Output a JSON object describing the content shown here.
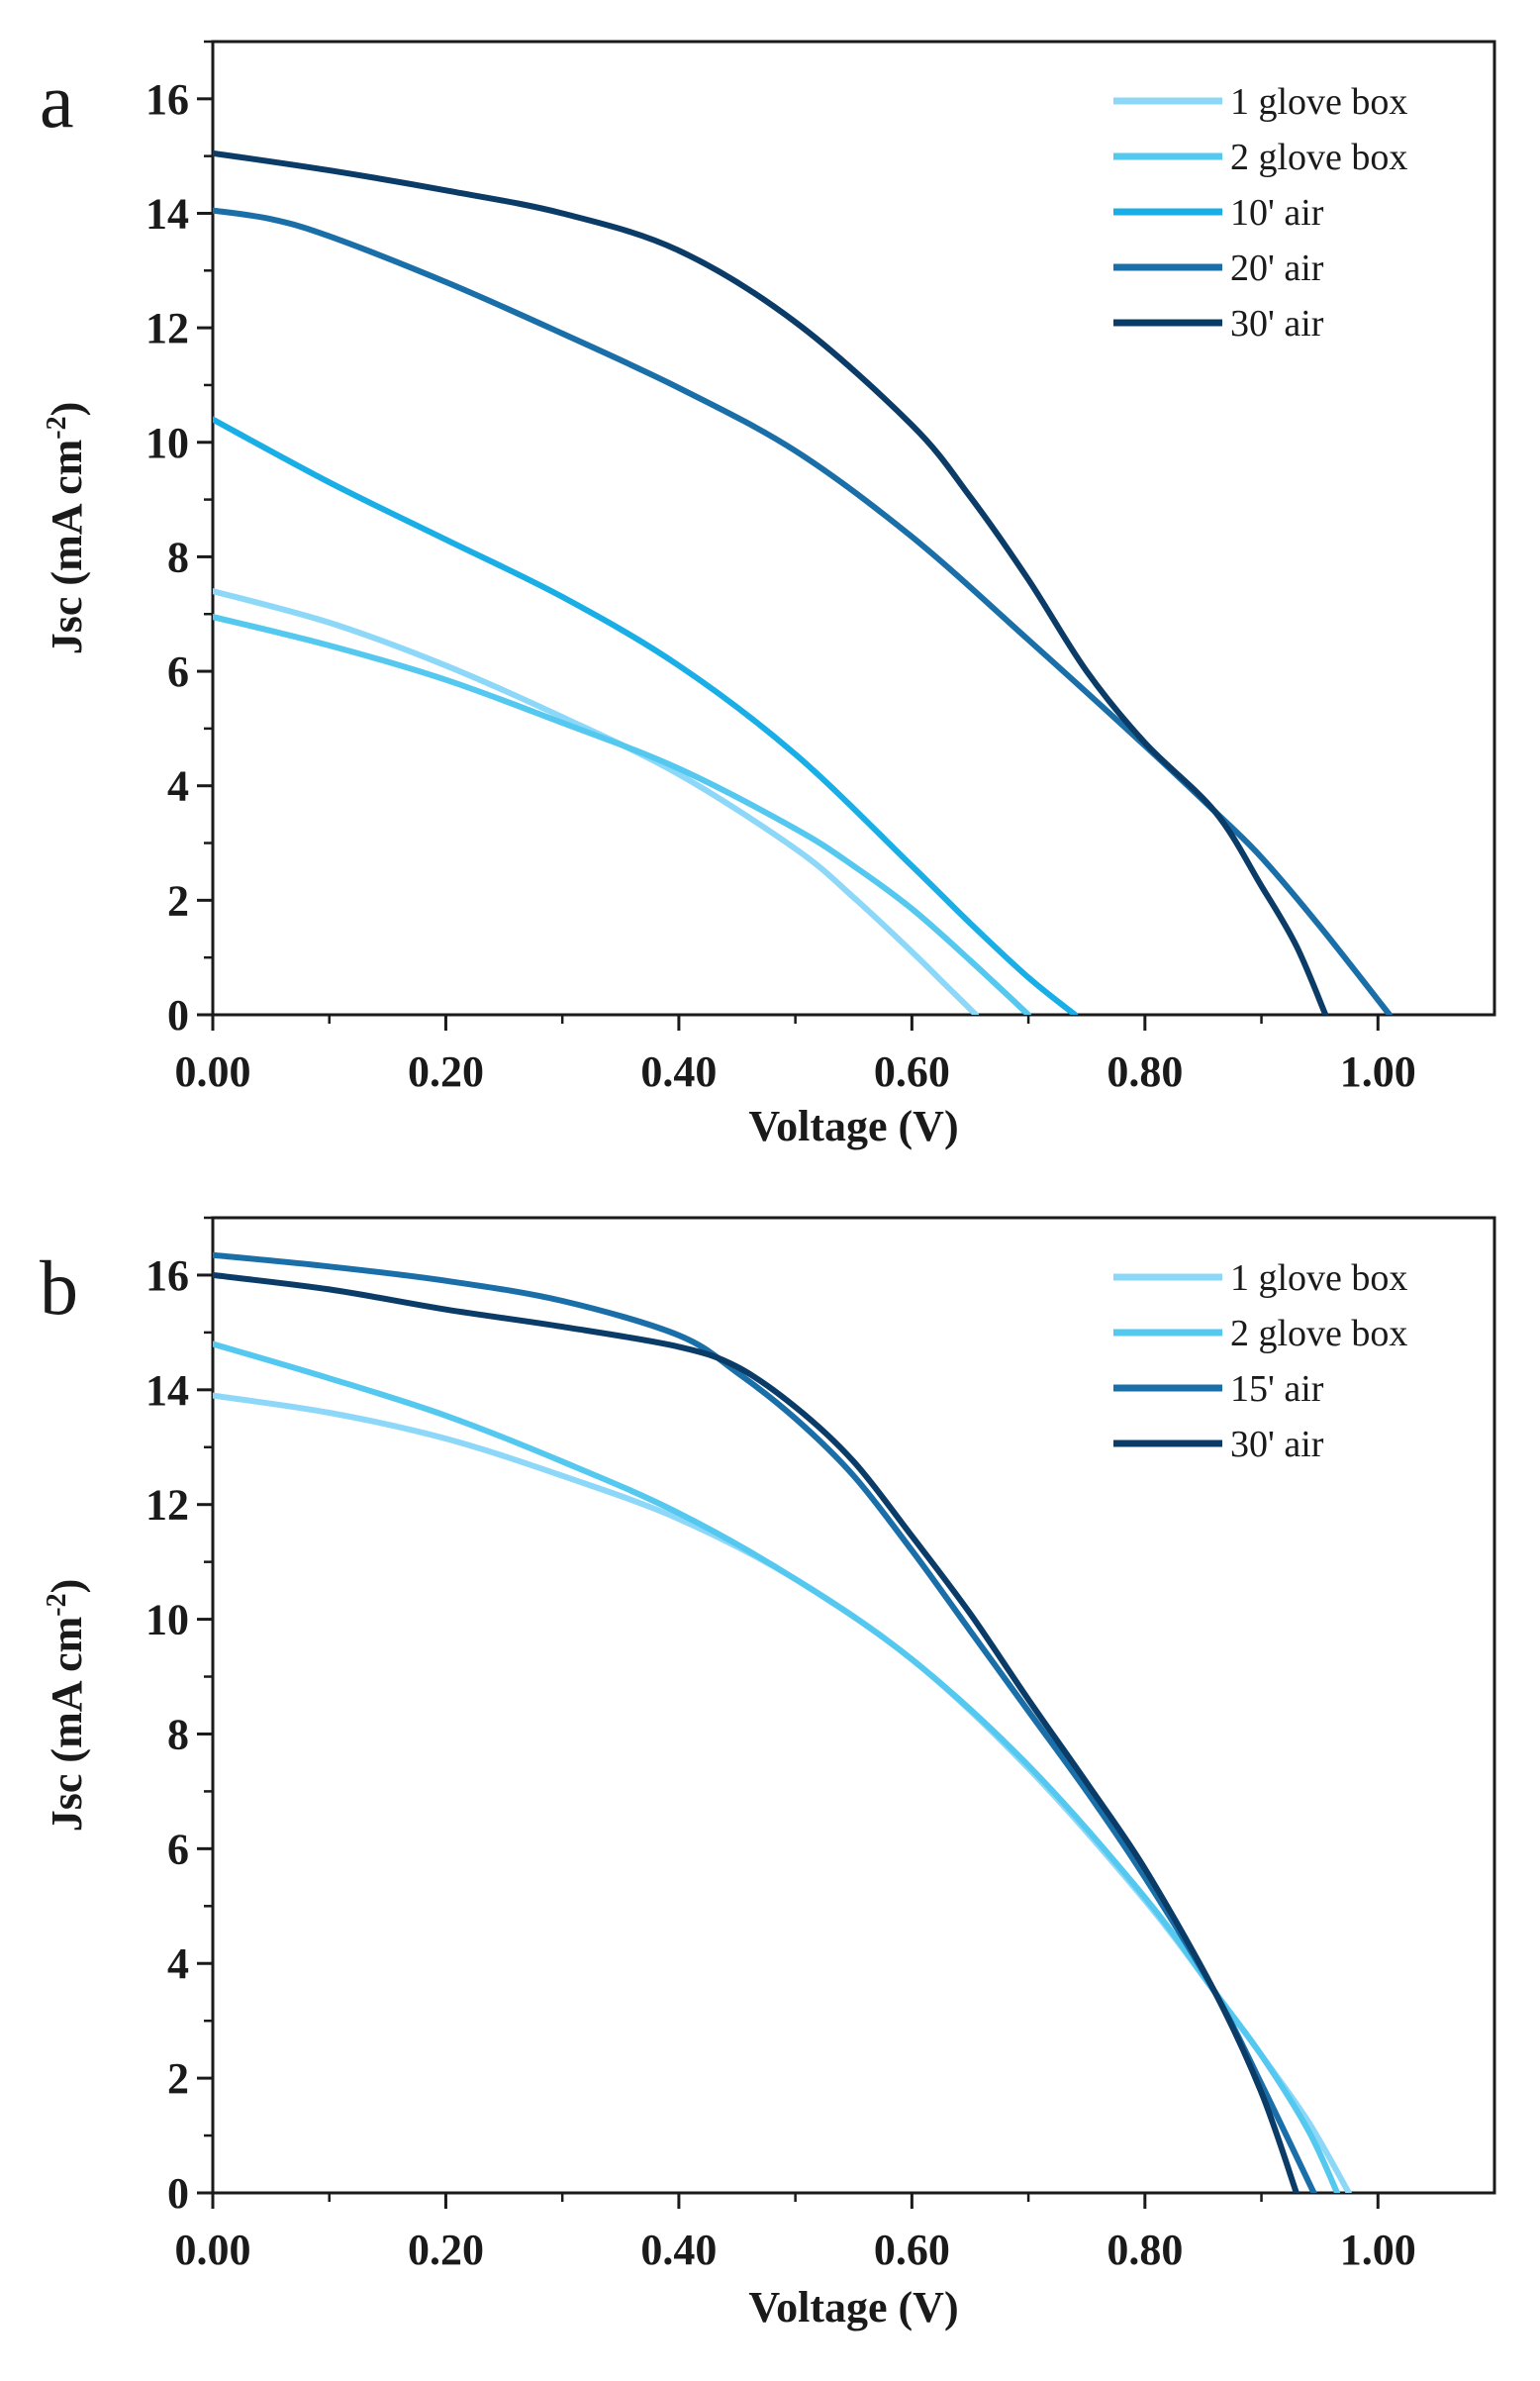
{
  "chart_data": [
    {
      "type": "line",
      "panel_label": "a",
      "xlabel": "Voltage (V)",
      "ylabel": "Jsc (mA cm",
      "ylabel_sup": "-2",
      "ylabel_close": ")",
      "xlim": [
        0.0,
        1.1
      ],
      "ylim": [
        0,
        17
      ],
      "xticks": [
        0.0,
        0.2,
        0.4,
        0.6,
        0.8,
        1.0
      ],
      "xtick_labels": [
        "0.00",
        "0.20",
        "0.40",
        "0.60",
        "0.80",
        "1.00"
      ],
      "yticks": [
        0,
        2,
        4,
        6,
        8,
        10,
        12,
        14,
        16
      ],
      "ytick_labels": [
        "0",
        "2",
        "4",
        "6",
        "8",
        "10",
        "12",
        "14",
        "16"
      ],
      "legend_position": "top-right",
      "series": [
        {
          "name": "1 glove box",
          "color": "#8dd8f8",
          "x": [
            0.0,
            0.1,
            0.2,
            0.3,
            0.4,
            0.5,
            0.55,
            0.6,
            0.63,
            0.655
          ],
          "y": [
            7.4,
            6.85,
            6.1,
            5.2,
            4.2,
            2.9,
            2.05,
            1.1,
            0.5,
            0.0
          ]
        },
        {
          "name": "2 glove box",
          "color": "#55c8f0",
          "x": [
            0.0,
            0.1,
            0.2,
            0.3,
            0.4,
            0.5,
            0.55,
            0.6,
            0.65,
            0.7
          ],
          "y": [
            6.95,
            6.45,
            5.85,
            5.1,
            4.3,
            3.25,
            2.6,
            1.85,
            0.95,
            0.0
          ]
        },
        {
          "name": "10' air",
          "color": "#1aaee6",
          "x": [
            0.0,
            0.1,
            0.2,
            0.3,
            0.4,
            0.5,
            0.6,
            0.65,
            0.7,
            0.74
          ],
          "y": [
            10.4,
            9.3,
            8.3,
            7.3,
            6.1,
            4.55,
            2.6,
            1.6,
            0.65,
            0.0
          ]
        },
        {
          "name": "20' air",
          "color": "#1a6fa8",
          "x": [
            0.0,
            0.05,
            0.1,
            0.2,
            0.3,
            0.4,
            0.5,
            0.6,
            0.7,
            0.8,
            0.86,
            0.9,
            0.95,
            1.01
          ],
          "y": [
            14.05,
            13.9,
            13.6,
            12.8,
            11.9,
            10.95,
            9.85,
            8.35,
            6.55,
            4.7,
            3.55,
            2.75,
            1.55,
            0.0
          ]
        },
        {
          "name": "30' air",
          "color": "#0b3c68",
          "x": [
            0.0,
            0.1,
            0.2,
            0.3,
            0.4,
            0.5,
            0.6,
            0.65,
            0.7,
            0.75,
            0.8,
            0.86,
            0.9,
            0.93,
            0.955
          ],
          "y": [
            15.05,
            14.75,
            14.4,
            14.0,
            13.35,
            12.1,
            10.3,
            9.05,
            7.6,
            6.0,
            4.75,
            3.55,
            2.25,
            1.2,
            0.0
          ]
        }
      ]
    },
    {
      "type": "line",
      "panel_label": "b",
      "xlabel": "Voltage (V)",
      "ylabel": "Jsc (mA cm",
      "ylabel_sup": "-2",
      "ylabel_close": ")",
      "xlim": [
        0.0,
        1.1
      ],
      "ylim": [
        0,
        17
      ],
      "xticks": [
        0.0,
        0.2,
        0.4,
        0.6,
        0.8,
        1.0
      ],
      "xtick_labels": [
        "0.00",
        "0.20",
        "0.40",
        "0.60",
        "0.80",
        "1.00"
      ],
      "yticks": [
        0,
        2,
        4,
        6,
        8,
        10,
        12,
        14,
        16
      ],
      "ytick_labels": [
        "0",
        "2",
        "4",
        "6",
        "8",
        "10",
        "12",
        "14",
        "16"
      ],
      "legend_position": "top-right",
      "series": [
        {
          "name": "1 glove box",
          "color": "#8dd8f8",
          "x": [
            0.0,
            0.1,
            0.2,
            0.3,
            0.4,
            0.5,
            0.6,
            0.7,
            0.8,
            0.86,
            0.9,
            0.94,
            0.975
          ],
          "y": [
            13.9,
            13.6,
            13.15,
            12.5,
            11.75,
            10.7,
            9.3,
            7.4,
            5.1,
            3.5,
            2.4,
            1.25,
            0.0
          ]
        },
        {
          "name": "2 glove box",
          "color": "#55c8f0",
          "x": [
            0.0,
            0.1,
            0.2,
            0.3,
            0.4,
            0.5,
            0.6,
            0.7,
            0.8,
            0.86,
            0.9,
            0.94,
            0.965
          ],
          "y": [
            14.8,
            14.2,
            13.55,
            12.75,
            11.85,
            10.7,
            9.3,
            7.45,
            5.15,
            3.5,
            2.4,
            1.1,
            0.0
          ]
        },
        {
          "name": "15' air",
          "color": "#1a6fa8",
          "x": [
            0.0,
            0.1,
            0.2,
            0.3,
            0.4,
            0.45,
            0.5,
            0.55,
            0.6,
            0.65,
            0.7,
            0.75,
            0.8,
            0.86,
            0.9,
            0.945
          ],
          "y": [
            16.35,
            16.15,
            15.9,
            15.55,
            14.95,
            14.3,
            13.5,
            12.5,
            11.2,
            9.8,
            8.4,
            7.0,
            5.5,
            3.5,
            1.9,
            0.0
          ]
        },
        {
          "name": "30' air",
          "color": "#0b3c68",
          "x": [
            0.0,
            0.1,
            0.2,
            0.3,
            0.4,
            0.45,
            0.5,
            0.55,
            0.6,
            0.65,
            0.7,
            0.75,
            0.8,
            0.86,
            0.9,
            0.93
          ],
          "y": [
            16.0,
            15.75,
            15.4,
            15.1,
            14.75,
            14.4,
            13.7,
            12.75,
            11.45,
            10.1,
            8.6,
            7.15,
            5.65,
            3.5,
            1.75,
            0.0
          ]
        }
      ]
    }
  ]
}
